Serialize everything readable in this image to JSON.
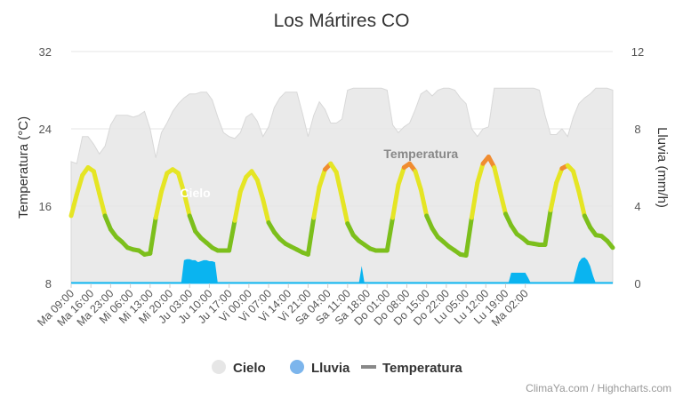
{
  "chart_data": {
    "type": "line",
    "title": "Los Mártires CO",
    "ylabel_left": "Temperatura (°C)",
    "ylabel_right": "Lluvia (mm/h)",
    "y_left_ticks": [
      "32",
      "24",
      "16",
      "8"
    ],
    "y_right_ticks": [
      "12",
      "8",
      "4",
      "0"
    ],
    "ylim_left": [
      8,
      32
    ],
    "ylim_right": [
      0,
      12
    ],
    "x_tick_labels": [
      "Ma 09:00",
      "Ma 16:00",
      "Ma 23:00",
      "Mi 06:00",
      "Mi 13:00",
      "Mi 20:00",
      "Ju 03:00",
      "Ju 10:00",
      "Ju 17:00",
      "Vi 00:00",
      "Vi 07:00",
      "Vi 14:00",
      "Vi 21:00",
      "Sa 04:00",
      "Sa 11:00",
      "Sa 18:00",
      "Do 01:00",
      "Do 08:00",
      "Do 15:00",
      "Do 22:00",
      "Lu 05:00",
      "Lu 12:00",
      "Lu 19:00",
      "Ma 02:00"
    ],
    "grid": true,
    "legend_placement": "bottom-center",
    "legend": [
      {
        "label": "Cielo",
        "color": "#e6e6e6",
        "marker": "circle"
      },
      {
        "label": "Lluvia",
        "color": "#7cb5ec",
        "marker": "circle"
      },
      {
        "label": "Temperatura",
        "color": "#888888",
        "marker": "line"
      }
    ],
    "annotations": [
      {
        "text": "Cielo",
        "near_time": "Mi 20:00"
      },
      {
        "text": "Temperatura",
        "near_time": "Sa 18:00"
      }
    ],
    "credits": "ClimaYa.com / Highcharts.com",
    "series": [
      {
        "name": "Temperatura",
        "axis": "left",
        "color_stops": [
          {
            "min": 0,
            "color": "#7cbf1c"
          },
          {
            "min": 15,
            "color": "#e5e524"
          },
          {
            "min": 20,
            "color": "#f08c30"
          }
        ],
        "points": [
          [
            0,
            15.0
          ],
          [
            2,
            17.2
          ],
          [
            4,
            19.2
          ],
          [
            6,
            20.0
          ],
          [
            8,
            19.6
          ],
          [
            10,
            17.3
          ],
          [
            12,
            15.0
          ],
          [
            14,
            13.6
          ],
          [
            16,
            12.8
          ],
          [
            18,
            12.3
          ],
          [
            20,
            11.7
          ],
          [
            22,
            11.5
          ],
          [
            24,
            11.4
          ],
          [
            26,
            11.0
          ],
          [
            28,
            11.1
          ],
          [
            30,
            14.8
          ],
          [
            32,
            17.5
          ],
          [
            34,
            19.4
          ],
          [
            36,
            19.8
          ],
          [
            38,
            19.4
          ],
          [
            40,
            17.4
          ],
          [
            42,
            15.0
          ],
          [
            44,
            13.4
          ],
          [
            46,
            12.7
          ],
          [
            48,
            12.2
          ],
          [
            50,
            11.7
          ],
          [
            52,
            11.4
          ],
          [
            54,
            11.4
          ],
          [
            56,
            11.4
          ],
          [
            58,
            14.5
          ],
          [
            60,
            17.5
          ],
          [
            62,
            19.0
          ],
          [
            64,
            19.6
          ],
          [
            66,
            18.7
          ],
          [
            68,
            16.7
          ],
          [
            70,
            14.3
          ],
          [
            72,
            13.3
          ],
          [
            74,
            12.6
          ],
          [
            76,
            12.1
          ],
          [
            78,
            11.8
          ],
          [
            80,
            11.5
          ],
          [
            82,
            11.2
          ],
          [
            84,
            11.0
          ],
          [
            86,
            14.8
          ],
          [
            88,
            18.0
          ],
          [
            90,
            19.8
          ],
          [
            92,
            20.4
          ],
          [
            94,
            19.5
          ],
          [
            96,
            16.9
          ],
          [
            98,
            14.2
          ],
          [
            100,
            13.0
          ],
          [
            102,
            12.4
          ],
          [
            104,
            12.0
          ],
          [
            106,
            11.6
          ],
          [
            108,
            11.4
          ],
          [
            110,
            11.4
          ],
          [
            112,
            11.4
          ],
          [
            114,
            14.8
          ],
          [
            116,
            18.2
          ],
          [
            118,
            20.0
          ],
          [
            120,
            20.4
          ],
          [
            122,
            19.6
          ],
          [
            124,
            17.7
          ],
          [
            126,
            15.0
          ],
          [
            128,
            13.7
          ],
          [
            130,
            12.8
          ],
          [
            132,
            12.3
          ],
          [
            134,
            11.8
          ],
          [
            136,
            11.4
          ],
          [
            138,
            11.0
          ],
          [
            140,
            10.9
          ],
          [
            142,
            14.8
          ],
          [
            144,
            18.4
          ],
          [
            146,
            20.4
          ],
          [
            148,
            21.1
          ],
          [
            150,
            20.0
          ],
          [
            152,
            17.6
          ],
          [
            154,
            15.2
          ],
          [
            156,
            14.0
          ],
          [
            158,
            13.1
          ],
          [
            160,
            12.7
          ],
          [
            162,
            12.2
          ],
          [
            164,
            12.1
          ],
          [
            166,
            12.0
          ],
          [
            168,
            12.0
          ],
          [
            170,
            15.6
          ],
          [
            172,
            18.4
          ],
          [
            174,
            19.9
          ],
          [
            176,
            20.2
          ],
          [
            178,
            19.6
          ],
          [
            180,
            17.5
          ],
          [
            182,
            15.0
          ],
          [
            184,
            13.8
          ],
          [
            186,
            13.0
          ],
          [
            188,
            12.9
          ],
          [
            190,
            12.4
          ],
          [
            192,
            11.7
          ]
        ]
      },
      {
        "name": "Cielo",
        "axis": "right",
        "color": "#e6e6e6",
        "points": [
          [
            0,
            6.3
          ],
          [
            2,
            6.2
          ],
          [
            4,
            7.6
          ],
          [
            6,
            7.6
          ],
          [
            8,
            7.2
          ],
          [
            10,
            6.7
          ],
          [
            12,
            7.1
          ],
          [
            14,
            8.2
          ],
          [
            16,
            8.7
          ],
          [
            18,
            8.7
          ],
          [
            20,
            8.7
          ],
          [
            22,
            8.6
          ],
          [
            24,
            8.7
          ],
          [
            26,
            8.9
          ],
          [
            28,
            8.0
          ],
          [
            30,
            6.5
          ],
          [
            32,
            7.8
          ],
          [
            34,
            8.3
          ],
          [
            36,
            8.9
          ],
          [
            38,
            9.3
          ],
          [
            40,
            9.6
          ],
          [
            42,
            9.8
          ],
          [
            44,
            9.8
          ],
          [
            46,
            9.9
          ],
          [
            48,
            9.9
          ],
          [
            50,
            9.5
          ],
          [
            52,
            8.6
          ],
          [
            54,
            7.8
          ],
          [
            56,
            7.6
          ],
          [
            58,
            7.5
          ],
          [
            60,
            7.8
          ],
          [
            62,
            8.6
          ],
          [
            64,
            8.8
          ],
          [
            66,
            8.4
          ],
          [
            68,
            7.6
          ],
          [
            70,
            8.1
          ],
          [
            72,
            9.1
          ],
          [
            74,
            9.6
          ],
          [
            76,
            9.9
          ],
          [
            78,
            9.9
          ],
          [
            80,
            9.9
          ],
          [
            82,
            8.8
          ],
          [
            84,
            7.6
          ],
          [
            86,
            8.7
          ],
          [
            88,
            9.4
          ],
          [
            90,
            9.0
          ],
          [
            92,
            8.3
          ],
          [
            94,
            8.3
          ],
          [
            96,
            8.5
          ],
          [
            98,
            10.0
          ],
          [
            100,
            10.1
          ],
          [
            102,
            10.1
          ],
          [
            104,
            10.1
          ],
          [
            106,
            10.1
          ],
          [
            108,
            10.1
          ],
          [
            110,
            10.1
          ],
          [
            112,
            10.0
          ],
          [
            114,
            8.2
          ],
          [
            116,
            7.8
          ],
          [
            118,
            8.1
          ],
          [
            120,
            8.3
          ],
          [
            122,
            9.0
          ],
          [
            124,
            9.8
          ],
          [
            126,
            10.0
          ],
          [
            128,
            9.7
          ],
          [
            130,
            10.0
          ],
          [
            132,
            10.1
          ],
          [
            134,
            10.1
          ],
          [
            136,
            10.0
          ],
          [
            138,
            9.6
          ],
          [
            140,
            9.3
          ],
          [
            142,
            8.0
          ],
          [
            144,
            7.6
          ],
          [
            146,
            8.0
          ],
          [
            148,
            8.1
          ],
          [
            150,
            10.1
          ],
          [
            152,
            10.1
          ],
          [
            154,
            10.1
          ],
          [
            156,
            10.1
          ],
          [
            158,
            10.1
          ],
          [
            160,
            10.1
          ],
          [
            162,
            10.1
          ],
          [
            164,
            10.1
          ],
          [
            166,
            10.0
          ],
          [
            168,
            8.7
          ],
          [
            170,
            7.7
          ],
          [
            172,
            7.7
          ],
          [
            174,
            8.0
          ],
          [
            176,
            7.6
          ],
          [
            178,
            8.6
          ],
          [
            180,
            9.3
          ],
          [
            182,
            9.6
          ],
          [
            184,
            9.8
          ],
          [
            186,
            10.1
          ],
          [
            188,
            10.1
          ],
          [
            190,
            10.1
          ],
          [
            192,
            10.0
          ]
        ]
      },
      {
        "name": "Lluvia",
        "axis": "right",
        "color": "#0ab4f0",
        "points": [
          [
            0,
            0
          ],
          [
            39,
            0
          ],
          [
            40,
            1.2
          ],
          [
            41,
            1.25
          ],
          [
            42,
            1.25
          ],
          [
            43,
            1.2
          ],
          [
            44,
            1.2
          ],
          [
            45,
            1.1
          ],
          [
            46,
            1.15
          ],
          [
            47,
            1.2
          ],
          [
            48,
            1.2
          ],
          [
            49,
            1.15
          ],
          [
            50,
            1.15
          ],
          [
            51,
            1.1
          ],
          [
            52,
            0
          ],
          [
            102,
            0
          ],
          [
            103,
            0.9
          ],
          [
            104,
            0
          ],
          [
            155,
            0
          ],
          [
            156,
            0.55
          ],
          [
            159,
            0.55
          ],
          [
            161,
            0.55
          ],
          [
            162,
            0.3
          ],
          [
            163,
            0
          ],
          [
            178,
            0
          ],
          [
            179,
            0.6
          ],
          [
            180,
            1.1
          ],
          [
            181,
            1.3
          ],
          [
            182,
            1.35
          ],
          [
            183,
            1.2
          ],
          [
            184,
            0.9
          ],
          [
            185,
            0.4
          ],
          [
            186,
            0
          ],
          [
            192,
            0
          ]
        ]
      }
    ]
  }
}
